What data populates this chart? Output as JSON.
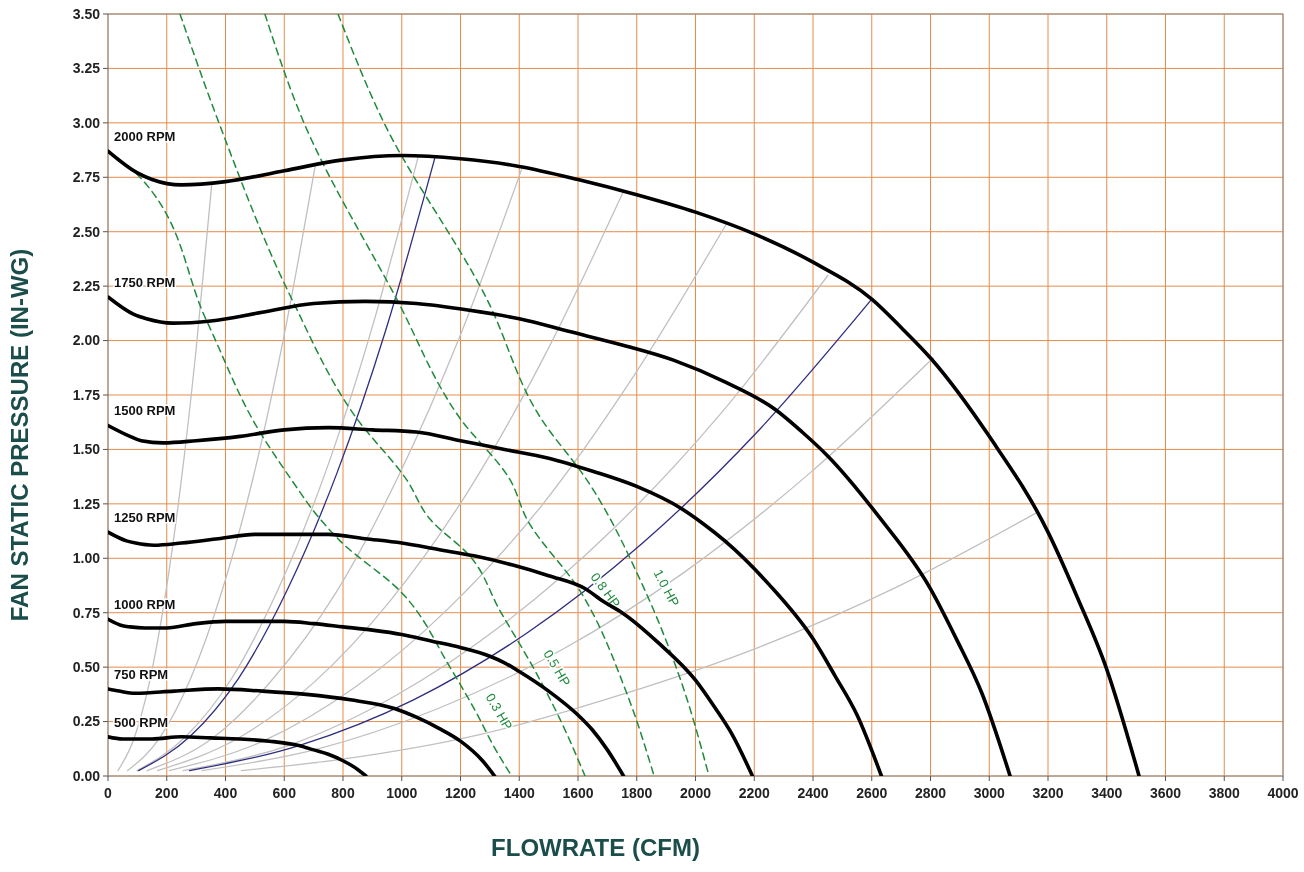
{
  "chart_data": {
    "type": "line",
    "xlabel": "FLOWRATE (CFM)",
    "ylabel": "FAN STATIC PRESSURE (IN-WG)",
    "xlim": [
      0,
      4000
    ],
    "ylim": [
      0,
      3.5
    ],
    "xticks": [
      0,
      200,
      400,
      600,
      800,
      1000,
      1200,
      1400,
      1600,
      1800,
      2000,
      2200,
      2400,
      2600,
      2800,
      3000,
      3200,
      3400,
      3600,
      3800,
      4000
    ],
    "yticks": [
      {
        "value": 0,
        "label": "0.00"
      },
      {
        "value": 0.25,
        "label": "0.25"
      },
      {
        "value": 0.5,
        "label": "0.50"
      },
      {
        "value": 0.75,
        "label": "0.75"
      },
      {
        "value": 1,
        "label": "1.00"
      },
      {
        "value": 1.25,
        "label": "1.25"
      },
      {
        "value": 1.5,
        "label": "1.50"
      },
      {
        "value": 1.75,
        "label": "1.75"
      },
      {
        "value": 2,
        "label": "2.00"
      },
      {
        "value": 2.25,
        "label": "2.25"
      },
      {
        "value": 2.5,
        "label": "2.50"
      },
      {
        "value": 2.75,
        "label": "2.75"
      },
      {
        "value": 3,
        "label": "3.00"
      },
      {
        "value": 3.25,
        "label": "3.25"
      },
      {
        "value": 3.5,
        "label": "3.50"
      }
    ],
    "grid": true,
    "legend": false,
    "series": [
      {
        "color": "#c0c0c0",
        "line_style": "solid",
        "x": [
          34,
          88,
          141,
          194,
          247,
          300,
          353
        ],
        "values": [
          0.025,
          0.17,
          0.43,
          0.82,
          1.33,
          1.96,
          2.715
        ]
      },
      {
        "color": "#c0c0c0",
        "line_style": "solid",
        "x": [
          67,
          176,
          282,
          388,
          494,
          599,
          705
        ],
        "values": [
          0.025,
          0.175,
          0.45,
          0.85,
          1.37,
          2.02,
          2.8
        ]
      },
      {
        "color": "#c0c0c0",
        "line_style": "solid",
        "x": [
          99,
          264,
          422,
          580,
          739,
          897,
          1055
        ],
        "values": [
          0.025,
          0.18,
          0.45,
          0.86,
          1.39,
          2.05,
          2.84
        ]
      },
      {
        "color": "#c0c0c0",
        "line_style": "solid",
        "x": [
          133,
          352,
          564,
          775,
          986,
          1198,
          1409
        ],
        "values": [
          0.025,
          0.17,
          0.45,
          0.84,
          1.37,
          2.02,
          2.79
        ]
      },
      {
        "color": "#c0c0c0",
        "line_style": "solid",
        "x": [
          169,
          438,
          701,
          964,
          1227,
          1490,
          1753
        ],
        "values": [
          0.025,
          0.17,
          0.43,
          0.81,
          1.31,
          1.94,
          2.68
        ]
      },
      {
        "color": "#c0c0c0",
        "line_style": "solid",
        "x": [
          209,
          527,
          843,
          1159,
          1475,
          1791,
          2107
        ],
        "values": [
          0.025,
          0.16,
          0.41,
          0.77,
          1.24,
          1.84,
          2.54
        ]
      },
      {
        "color": "#c0c0c0",
        "line_style": "solid",
        "x": [
          256,
          613,
          980,
          1348,
          1716,
          2083,
          2451
        ],
        "values": [
          0.025,
          0.14,
          0.37,
          0.7,
          1.13,
          1.66,
          2.3
        ]
      },
      {
        "color": "#c0c0c0",
        "line_style": "solid",
        "x": [
          320,
          702,
          1124,
          1545,
          1966,
          2388,
          2809
        ],
        "values": [
          0.025,
          0.12,
          0.31,
          0.58,
          0.94,
          1.39,
          1.92
        ]
      },
      {
        "color": "#c0c0c0",
        "line_style": "solid",
        "x": [
          454,
          791,
          1265,
          1739,
          2213,
          2688,
          3162
        ],
        "values": [
          0.025,
          0.076,
          0.19,
          0.37,
          0.59,
          0.87,
          1.21
        ]
      },
      {
        "color": "#2e2e80",
        "line_style": "solid",
        "x": [
          104,
          278,
          445,
          612,
          779,
          946,
          1113
        ],
        "values": [
          0.025,
          0.18,
          0.45,
          0.86,
          1.39,
          2.05,
          2.84
        ]
      },
      {
        "color": "#2e2e80",
        "line_style": "solid",
        "x": [
          278,
          650,
          1040,
          1430,
          1820,
          2210,
          2600
        ],
        "values": [
          0.025,
          0.14,
          0.35,
          0.66,
          1.07,
          1.58,
          2.19
        ]
      },
      {
        "name": "0.3 HP",
        "color": "#1f8a3c",
        "line_style": "dashed",
        "x": [
          0,
          109,
          336,
          517,
          625,
          716,
          790,
          994,
          1164,
          1250,
          1320,
          1374
        ],
        "values": [
          2.87,
          2.75,
          2.09,
          1.58,
          1.36,
          1.19,
          1.08,
          0.85,
          0.5,
          0.3,
          0.12,
          0
        ]
      },
      {
        "name": "0.5 HP",
        "color": "#1f8a3c",
        "line_style": "dashed",
        "x": [
          245,
          375,
          626,
          848,
          1017,
          1096,
          1232,
          1334,
          1447,
          1539,
          1624
        ],
        "values": [
          3.5,
          3.01,
          2.19,
          1.64,
          1.36,
          1.18,
          1.01,
          0.76,
          0.5,
          0.26,
          0
        ]
      },
      {
        "name": "0.8 HP",
        "color": "#1f8a3c",
        "line_style": "dashed",
        "x": [
          534,
          664,
          983,
          1200,
          1369,
          1426,
          1607,
          1766,
          1859
        ],
        "values": [
          3.5,
          3.01,
          2.19,
          1.64,
          1.36,
          1.18,
          0.85,
          0.38,
          0
        ]
      },
      {
        "name": "1.0 HP",
        "color": "#1f8a3c",
        "line_style": "dashed",
        "x": [
          783,
          936,
          1290,
          1475,
          1630,
          1822,
          1947,
          2046
        ],
        "values": [
          3.5,
          3.01,
          2.19,
          1.64,
          1.36,
          0.87,
          0.45,
          0
        ]
      },
      {
        "name": "2000 RPM",
        "color": "#000000",
        "line_style": "solid",
        "x": [
          0,
          100,
          150,
          250,
          400,
          600,
          800,
          1000,
          1200,
          1400,
          1600,
          1800,
          2000,
          2200,
          2400,
          2600,
          2700,
          2800,
          3000,
          3200,
          3300,
          3400,
          3510
        ],
        "values": [
          2.87,
          2.77,
          2.74,
          2.715,
          2.73,
          2.78,
          2.83,
          2.85,
          2.835,
          2.8,
          2.74,
          2.67,
          2.59,
          2.49,
          2.36,
          2.19,
          2.06,
          1.92,
          1.56,
          1.12,
          0.82,
          0.49,
          0
        ]
      },
      {
        "name": "1750 RPM",
        "color": "#000000",
        "line_style": "solid",
        "x": [
          0,
          88,
          131,
          219,
          350,
          525,
          700,
          875,
          1050,
          1225,
          1400,
          1575,
          1750,
          1925,
          2100,
          2275,
          2363,
          2450,
          2625,
          2800,
          2888,
          2975,
          3071
        ],
        "values": [
          2.2,
          2.12,
          2.1,
          2.08,
          2.09,
          2.13,
          2.17,
          2.18,
          2.17,
          2.14,
          2.1,
          2.04,
          1.98,
          1.91,
          1.81,
          1.68,
          1.58,
          1.47,
          1.19,
          0.86,
          0.63,
          0.38,
          0
        ]
      },
      {
        "name": "1500 RPM",
        "color": "#000000",
        "line_style": "solid",
        "x": [
          0,
          75,
          113,
          188,
          300,
          450,
          600,
          750,
          900,
          1050,
          1200,
          1350,
          1500,
          1650,
          1800,
          1950,
          2025,
          2100,
          2250,
          2400,
          2475,
          2550,
          2633
        ],
        "values": [
          1.61,
          1.56,
          1.54,
          1.53,
          1.54,
          1.56,
          1.59,
          1.6,
          1.59,
          1.58,
          1.54,
          1.5,
          1.46,
          1.4,
          1.33,
          1.23,
          1.16,
          1.08,
          0.88,
          0.63,
          0.46,
          0.28,
          0
        ]
      },
      {
        "name": "1250 RPM",
        "color": "#000000",
        "line_style": "solid",
        "x": [
          0,
          63,
          94,
          156,
          250,
          375,
          500,
          625,
          750,
          875,
          1000,
          1125,
          1250,
          1375,
          1500,
          1625,
          1688,
          1750,
          1875,
          2000,
          2063,
          2125,
          2194
        ],
        "values": [
          1.12,
          1.08,
          1.07,
          1.06,
          1.07,
          1.09,
          1.11,
          1.11,
          1.11,
          1.09,
          1.07,
          1.04,
          1.01,
          0.97,
          0.92,
          0.86,
          0.8,
          0.75,
          0.61,
          0.44,
          0.32,
          0.19,
          0
        ]
      },
      {
        "name": "1000 RPM",
        "color": "#000000",
        "line_style": "solid",
        "x": [
          0,
          50,
          75,
          125,
          200,
          300,
          400,
          500,
          600,
          700,
          800,
          900,
          1000,
          1100,
          1200,
          1300,
          1350,
          1400,
          1500,
          1600,
          1650,
          1700,
          1755
        ],
        "values": [
          0.72,
          0.69,
          0.685,
          0.68,
          0.68,
          0.7,
          0.71,
          0.71,
          0.71,
          0.7,
          0.685,
          0.67,
          0.65,
          0.62,
          0.59,
          0.55,
          0.52,
          0.48,
          0.39,
          0.28,
          0.21,
          0.12,
          0
        ]
      },
      {
        "name": "750 RPM",
        "color": "#000000",
        "line_style": "solid",
        "x": [
          0,
          38,
          94,
          225,
          375,
          525,
          675,
          825,
          975,
          1050,
          1125,
          1200,
          1275,
          1316
        ],
        "values": [
          0.4,
          0.39,
          0.38,
          0.39,
          0.4,
          0.39,
          0.375,
          0.35,
          0.31,
          0.27,
          0.22,
          0.16,
          0.07,
          0
        ]
      },
      {
        "name": "500 RPM",
        "color": "#000000",
        "line_style": "solid",
        "x": [
          0,
          50,
          150,
          250,
          350,
          450,
          550,
          650,
          700,
          750,
          800,
          850,
          878
        ],
        "values": [
          0.18,
          0.17,
          0.17,
          0.18,
          0.175,
          0.17,
          0.16,
          0.14,
          0.12,
          0.1,
          0.07,
          0.03,
          0
        ]
      }
    ]
  }
}
